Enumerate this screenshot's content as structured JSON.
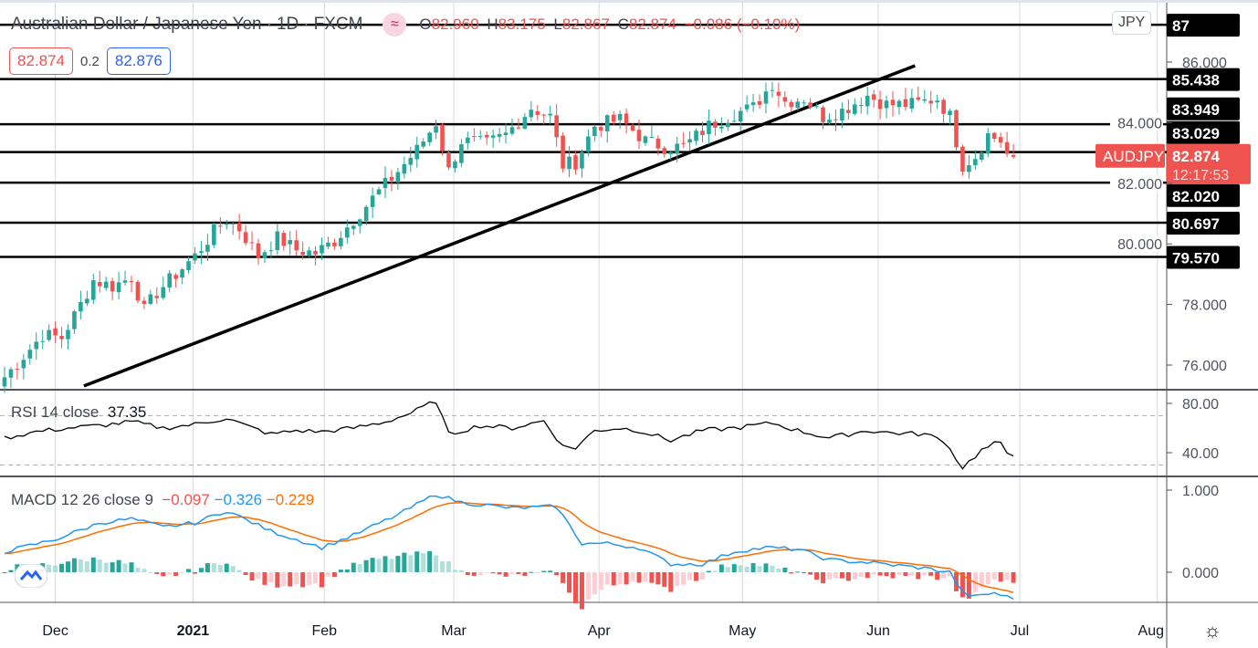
{
  "header": {
    "title": "Australian Dollar / Japanese Yen",
    "interval": "1D",
    "source": "FXCM",
    "indicator_icon": "approx-icon",
    "ohlc": {
      "o_label": "O",
      "o": "82.960",
      "h_label": "H",
      "h": "83.175",
      "l_label": "L",
      "l": "82.867",
      "c_label": "C",
      "c": "82.874",
      "change": "−0.086 (−0.10%)"
    }
  },
  "trade": {
    "sell": "82.874",
    "spread": "0.2",
    "buy": "82.876"
  },
  "currency_badge": "JPY",
  "symbol_tag": "AUDJPY",
  "last_price": "82.874",
  "countdown": "12:17:53",
  "rsi_legend": {
    "name": "RSI 14 close",
    "value": "37.35"
  },
  "macd_legend": {
    "name": "MACD 12 26 close 9",
    "hist": "−0.097",
    "macd": "−0.326",
    "signal": "−0.229"
  },
  "colors": {
    "up": "#26a69a",
    "down": "#ef5350",
    "macd": "#2196f3",
    "signal": "#ff6d00",
    "hist_up_strong": "#26a69a",
    "hist_up_weak": "#b2dfdb",
    "hist_down_strong": "#ef5350",
    "hist_down_weak": "#ffcdd2",
    "level_label_bg": "#000000"
  },
  "chart_data": {
    "type": "candlestick",
    "title": "Australian Dollar / Japanese Yen · 1D · FXCM",
    "ylim": [
      75.1,
      87.6
    ],
    "price_ticks": [
      "76.000",
      "78.000",
      "80.000",
      "82.000",
      "84.000",
      "86.000"
    ],
    "time_ticks": [
      {
        "label": "Dec",
        "index": 8
      },
      {
        "label": "2021",
        "index": 29.7
      },
      {
        "label": "Feb",
        "index": 50.4
      },
      {
        "label": "Mar",
        "index": 70.8
      },
      {
        "label": "Apr",
        "index": 93.7
      },
      {
        "label": "May",
        "index": 116.3
      },
      {
        "label": "Jun",
        "index": 137.7
      },
      {
        "label": "Jul",
        "index": 160
      },
      {
        "label": "Aug",
        "index": 181.7
      }
    ],
    "candle_count": 160,
    "close_keypoints": [
      [
        0,
        75.6
      ],
      [
        3,
        76.3
      ],
      [
        6,
        77.0
      ],
      [
        9,
        76.9
      ],
      [
        12,
        78.0
      ],
      [
        14,
        78.8
      ],
      [
        17,
        78.6
      ],
      [
        20,
        78.9
      ],
      [
        22,
        77.8
      ],
      [
        24,
        78.4
      ],
      [
        27,
        79.0
      ],
      [
        30,
        79.6
      ],
      [
        33,
        80.4
      ],
      [
        35,
        80.8
      ],
      [
        37,
        80.5
      ],
      [
        40,
        79.6
      ],
      [
        43,
        80.2
      ],
      [
        46,
        79.8
      ],
      [
        49,
        79.7
      ],
      [
        52,
        80.1
      ],
      [
        55,
        80.8
      ],
      [
        58,
        81.5
      ],
      [
        62,
        82.4
      ],
      [
        65,
        83.1
      ],
      [
        68,
        84.0
      ],
      [
        70,
        82.4
      ],
      [
        72,
        83.4
      ],
      [
        76,
        83.3
      ],
      [
        79,
        83.6
      ],
      [
        83,
        84.5
      ],
      [
        86,
        84.2
      ],
      [
        88,
        82.6
      ],
      [
        90,
        82.7
      ],
      [
        93,
        83.9
      ],
      [
        97,
        84.1
      ],
      [
        101,
        83.4
      ],
      [
        104,
        83.2
      ],
      [
        107,
        83.2
      ],
      [
        111,
        83.9
      ],
      [
        115,
        84.3
      ],
      [
        118,
        84.5
      ],
      [
        121,
        85.3
      ],
      [
        123,
        84.7
      ],
      [
        126,
        84.8
      ],
      [
        129,
        84.2
      ],
      [
        132,
        84.4
      ],
      [
        136,
        84.9
      ],
      [
        139,
        84.6
      ],
      [
        143,
        84.6
      ],
      [
        147,
        84.8
      ],
      [
        149,
        84.2
      ],
      [
        151,
        82.6
      ],
      [
        153,
        82.9
      ],
      [
        155,
        83.6
      ],
      [
        157,
        83.4
      ],
      [
        158,
        82.95
      ],
      [
        159,
        82.874
      ]
    ],
    "levels": [
      {
        "price": 87.23,
        "label": "87"
      },
      {
        "price": 85.438,
        "label": "85.438"
      },
      {
        "price": 83.949,
        "label": "83.949"
      },
      {
        "price": 83.029,
        "label": "83.029"
      },
      {
        "price": 82.02,
        "label": "82.020"
      },
      {
        "price": 80.697,
        "label": "80.697"
      },
      {
        "price": 79.57,
        "label": "79.570"
      }
    ],
    "trendline": {
      "from": [
        12.5,
        75.31
      ],
      "to": [
        143.5,
        85.88
      ]
    },
    "rsi": {
      "ylim": [
        18,
        95
      ],
      "ticks": [
        "40.00",
        "80.00"
      ],
      "bands": [
        30,
        70
      ],
      "keypoints": [
        [
          0,
          52
        ],
        [
          5,
          57
        ],
        [
          10,
          60
        ],
        [
          15,
          62
        ],
        [
          20,
          65
        ],
        [
          25,
          60
        ],
        [
          30,
          63
        ],
        [
          35,
          68
        ],
        [
          38,
          62
        ],
        [
          42,
          55
        ],
        [
          46,
          58
        ],
        [
          50,
          57
        ],
        [
          55,
          60
        ],
        [
          60,
          65
        ],
        [
          64,
          72
        ],
        [
          68,
          82
        ],
        [
          70,
          55
        ],
        [
          75,
          62
        ],
        [
          80,
          60
        ],
        [
          85,
          66
        ],
        [
          88,
          45
        ],
        [
          90,
          44
        ],
        [
          93,
          58
        ],
        [
          97,
          60
        ],
        [
          100,
          58
        ],
        [
          105,
          50
        ],
        [
          110,
          58
        ],
        [
          115,
          60
        ],
        [
          121,
          64
        ],
        [
          125,
          58
        ],
        [
          130,
          52
        ],
        [
          136,
          58
        ],
        [
          140,
          56
        ],
        [
          145,
          55
        ],
        [
          148,
          50
        ],
        [
          151,
          28
        ],
        [
          154,
          42
        ],
        [
          156,
          47
        ],
        [
          157,
          47
        ],
        [
          158,
          40
        ],
        [
          159,
          37.35
        ]
      ]
    },
    "macd": {
      "ylim": [
        -0.4,
        1.1
      ],
      "ticks": [
        "0.000",
        "1.000"
      ],
      "keypoints": [
        [
          0,
          0.25
        ],
        [
          8,
          0.4
        ],
        [
          15,
          0.6
        ],
        [
          20,
          0.65
        ],
        [
          25,
          0.55
        ],
        [
          30,
          0.6
        ],
        [
          35,
          0.75
        ],
        [
          42,
          0.5
        ],
        [
          50,
          0.3
        ],
        [
          55,
          0.45
        ],
        [
          62,
          0.7
        ],
        [
          68,
          0.95
        ],
        [
          72,
          0.85
        ],
        [
          80,
          0.78
        ],
        [
          87,
          0.8
        ],
        [
          91,
          0.35
        ],
        [
          95,
          0.35
        ],
        [
          100,
          0.3
        ],
        [
          105,
          0.1
        ],
        [
          110,
          0.1
        ],
        [
          115,
          0.25
        ],
        [
          120,
          0.3
        ],
        [
          125,
          0.28
        ],
        [
          130,
          0.15
        ],
        [
          136,
          0.12
        ],
        [
          145,
          0.05
        ],
        [
          149,
          0.0
        ],
        [
          151,
          -0.25
        ],
        [
          153,
          -0.3
        ],
        [
          156,
          -0.25
        ],
        [
          159,
          -0.326
        ]
      ]
    }
  }
}
